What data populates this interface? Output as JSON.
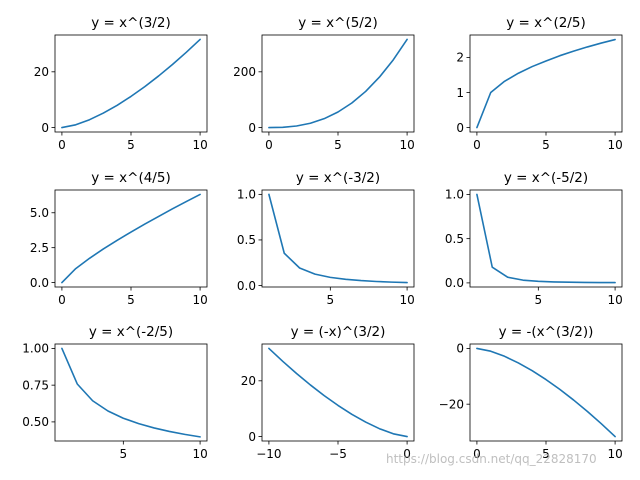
{
  "watermark": "https://blog.csdn.net/qq_22828170",
  "colors": {
    "line": "#1f77b4",
    "axes": "#000000",
    "background": "#ffffff"
  },
  "chart_data": [
    {
      "type": "line",
      "title": "y = x^(3/2)",
      "x": [
        0,
        1,
        2,
        3,
        4,
        5,
        6,
        7,
        8,
        9,
        10
      ],
      "y": [
        0,
        1,
        2.83,
        5.2,
        8,
        11.18,
        14.7,
        18.52,
        22.63,
        27,
        31.62
      ],
      "xlim": [
        -0.5,
        10.5
      ],
      "ylim": [
        -1.58,
        33.2
      ],
      "xticks": [
        0,
        5,
        10
      ],
      "xticklabels": [
        "0",
        "5",
        "10"
      ],
      "yticks": [
        0,
        20
      ],
      "yticklabels": [
        "0",
        "20"
      ]
    },
    {
      "type": "line",
      "title": "y = x^(5/2)",
      "x": [
        0,
        1,
        2,
        3,
        4,
        5,
        6,
        7,
        8,
        9,
        10
      ],
      "y": [
        0,
        1,
        5.66,
        15.59,
        32,
        55.9,
        88.18,
        129.64,
        181.02,
        243,
        316.23
      ],
      "xlim": [
        -0.5,
        10.5
      ],
      "ylim": [
        -15.8,
        332
      ],
      "xticks": [
        0,
        5,
        10
      ],
      "xticklabels": [
        "0",
        "5",
        "10"
      ],
      "yticks": [
        0,
        200
      ],
      "yticklabels": [
        "0",
        "200"
      ]
    },
    {
      "type": "line",
      "title": "y = x^(2/5)",
      "x": [
        0,
        1,
        2,
        3,
        4,
        5,
        6,
        7,
        8,
        9,
        10
      ],
      "y": [
        0,
        1,
        1.32,
        1.55,
        1.74,
        1.9,
        2.05,
        2.18,
        2.3,
        2.41,
        2.51
      ],
      "xlim": [
        -0.5,
        10.5
      ],
      "ylim": [
        -0.126,
        2.64
      ],
      "xticks": [
        0,
        5,
        10
      ],
      "xticklabels": [
        "0",
        "5",
        "10"
      ],
      "yticks": [
        0,
        1,
        2
      ],
      "yticklabels": [
        "0",
        "1",
        "2"
      ]
    },
    {
      "type": "line",
      "title": "y = x^(4/5)",
      "x": [
        0,
        1,
        2,
        3,
        4,
        5,
        6,
        7,
        8,
        9,
        10
      ],
      "y": [
        0,
        1,
        1.74,
        2.41,
        3.03,
        3.62,
        4.19,
        4.74,
        5.28,
        5.8,
        6.31
      ],
      "xlim": [
        -0.5,
        10.5
      ],
      "ylim": [
        -0.316,
        6.63
      ],
      "xticks": [
        0,
        5,
        10
      ],
      "xticklabels": [
        "0",
        "5",
        "10"
      ],
      "yticks": [
        0,
        2.5,
        5
      ],
      "yticklabels": [
        "0.0",
        "2.5",
        "5.0"
      ]
    },
    {
      "type": "line",
      "title": "y = x^(-3/2)",
      "x": [
        1,
        2,
        3,
        4,
        5,
        6,
        7,
        8,
        9,
        10
      ],
      "y": [
        1,
        0.354,
        0.192,
        0.125,
        0.089,
        0.068,
        0.054,
        0.044,
        0.037,
        0.032
      ],
      "xlim": [
        0.55,
        10.45
      ],
      "ylim": [
        -0.0164,
        1.048
      ],
      "xticks": [
        5,
        10
      ],
      "xticklabels": [
        "5",
        "10"
      ],
      "yticks": [
        0,
        0.5,
        1
      ],
      "yticklabels": [
        "0.0",
        "0.5",
        "1.0"
      ]
    },
    {
      "type": "line",
      "title": "y = x^(-5/2)",
      "x": [
        1,
        2,
        3,
        4,
        5,
        6,
        7,
        8,
        9,
        10
      ],
      "y": [
        1,
        0.177,
        0.064,
        0.031,
        0.018,
        0.011,
        0.0077,
        0.0055,
        0.0041,
        0.0032
      ],
      "xlim": [
        0.55,
        10.45
      ],
      "ylim": [
        -0.0465,
        1.05
      ],
      "xticks": [
        5,
        10
      ],
      "xticklabels": [
        "5",
        "10"
      ],
      "yticks": [
        0,
        0.5,
        1
      ],
      "yticklabels": [
        "0.0",
        "0.5",
        "1.0"
      ]
    },
    {
      "type": "line",
      "title": "y = x^(-2/5)",
      "x": [
        1,
        2,
        3,
        4,
        5,
        6,
        7,
        8,
        9,
        10
      ],
      "y": [
        1,
        0.758,
        0.644,
        0.574,
        0.525,
        0.488,
        0.459,
        0.435,
        0.415,
        0.398
      ],
      "xlim": [
        0.55,
        10.45
      ],
      "ylim": [
        0.37,
        1.03
      ],
      "xticks": [
        5,
        10
      ],
      "xticklabels": [
        "5",
        "10"
      ],
      "yticks": [
        0.5,
        0.75,
        1
      ],
      "yticklabels": [
        "0.50",
        "0.75",
        "1.00"
      ]
    },
    {
      "type": "line",
      "title": "y = (-x)^(3/2)",
      "x": [
        -10,
        -9,
        -8,
        -7,
        -6,
        -5,
        -4,
        -3,
        -2,
        -1,
        0
      ],
      "y": [
        31.62,
        27,
        22.63,
        18.52,
        14.7,
        11.18,
        8,
        5.2,
        2.83,
        1,
        0
      ],
      "xlim": [
        -10.5,
        0.5
      ],
      "ylim": [
        -1.58,
        33.2
      ],
      "xticks": [
        -10,
        -5,
        0
      ],
      "xticklabels": [
        "−10",
        "−5",
        "0"
      ],
      "yticks": [
        0,
        20
      ],
      "yticklabels": [
        "0",
        "20"
      ]
    },
    {
      "type": "line",
      "title": "y = -(x^(3/2))",
      "x": [
        0,
        1,
        2,
        3,
        4,
        5,
        6,
        7,
        8,
        9,
        10
      ],
      "y": [
        0,
        -1,
        -2.83,
        -5.2,
        -8,
        -11.18,
        -14.7,
        -18.52,
        -22.63,
        -27,
        -31.62
      ],
      "xlim": [
        -0.5,
        10.5
      ],
      "ylim": [
        -33.2,
        1.58
      ],
      "xticks": [
        0,
        5,
        10
      ],
      "xticklabels": [
        "0",
        "5",
        "10"
      ],
      "yticks": [
        -20,
        0
      ],
      "yticklabels": [
        "−20",
        "0"
      ]
    }
  ]
}
